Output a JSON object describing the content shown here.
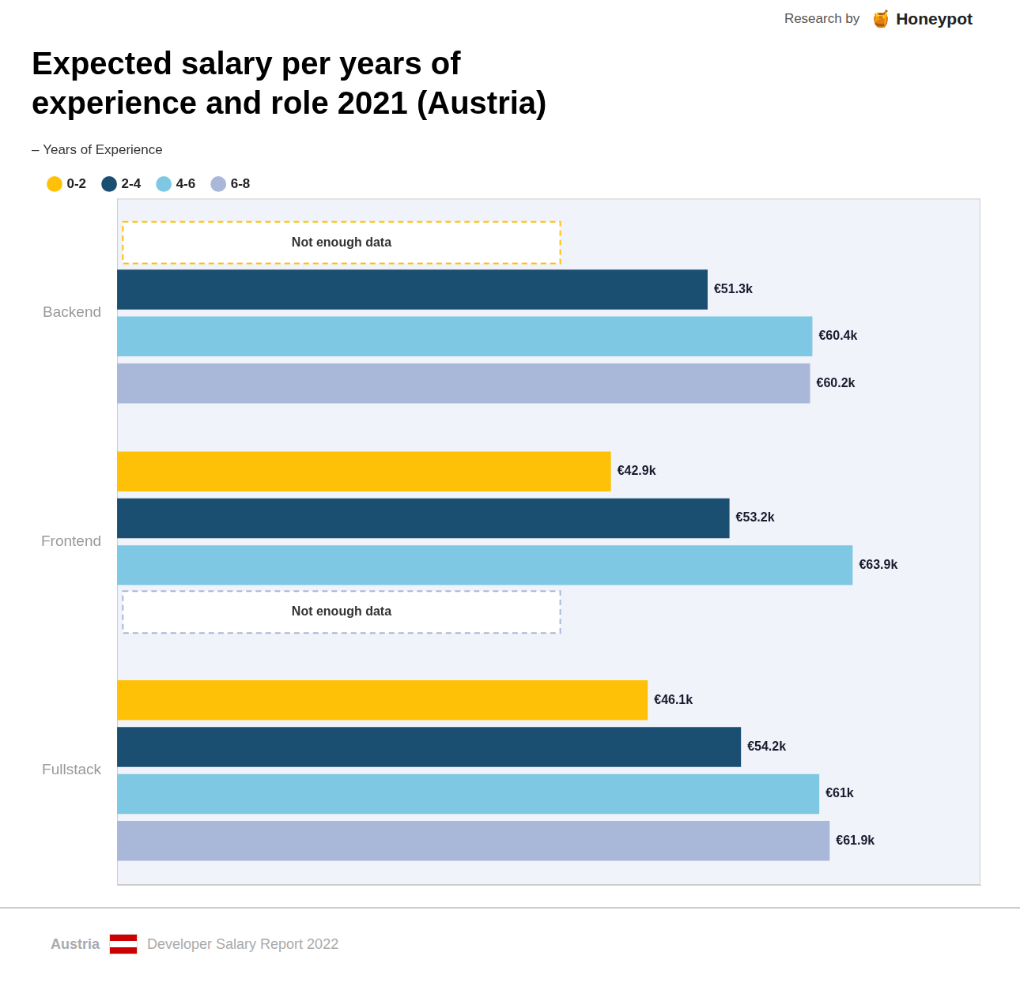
{
  "chart_data": {
    "type": "bar",
    "orientation": "horizontal",
    "title": [
      "Expected salary per years of",
      "experience and role 2021 (Austria)"
    ],
    "categories": [
      "Backend",
      "Frontend",
      "Fullstack"
    ],
    "series": [
      {
        "name": "0-2",
        "color": "#FFC107",
        "values": [
          null,
          42.9,
          46.1
        ],
        "value_labels": [
          null,
          "€42.9k",
          "€46.1k"
        ]
      },
      {
        "name": "2-4",
        "color": "#1B4F72",
        "values": [
          51.3,
          53.2,
          54.2
        ],
        "value_labels": [
          "€51.3k",
          "€53.2k",
          "€54.2k"
        ]
      },
      {
        "name": "4-6",
        "color": "#7EC8E3",
        "values": [
          60.4,
          63.9,
          61.0
        ],
        "value_labels": [
          "€60.4k",
          "€63.9k",
          "€61k"
        ]
      },
      {
        "name": "6-8",
        "color": "#A9B8D8",
        "values": [
          60.2,
          null,
          61.9
        ],
        "value_labels": [
          "€60.2k",
          null,
          "€61.9k"
        ]
      }
    ],
    "xlim": [
      0,
      75
    ],
    "grid": false,
    "legend": "top",
    "legend_title": "– Years of Experience",
    "data_labels": true,
    "tick_labels": "y",
    "annotations": [
      {
        "text": "Not enough data",
        "category": "Backend",
        "series": "0-2"
      },
      {
        "text": "Not enough data",
        "category": "Frontend",
        "series": "6-8"
      }
    ],
    "footer": [
      "Austria",
      "Developer Salary Report 2022"
    ],
    "credit": [
      "Research by",
      "🍯 Honeypot"
    ]
  }
}
